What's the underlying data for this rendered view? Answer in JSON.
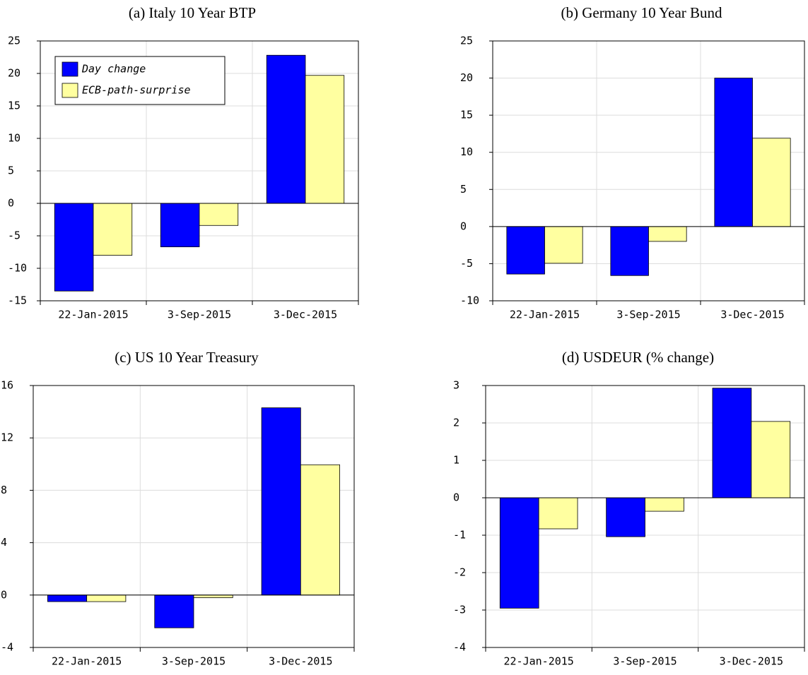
{
  "chart_data": [
    {
      "type": "bar",
      "title": "(a) Italy 10 Year BTP",
      "categories": [
        "22-Jan-2015",
        "3-Sep-2015",
        "3-Dec-2015"
      ],
      "series": [
        {
          "name": "Day change",
          "color": "#0000ff",
          "values": [
            -13.5,
            -6.7,
            22.8
          ]
        },
        {
          "name": "ECB-path-surprise",
          "color": "#ffffa0",
          "values": [
            -8.0,
            -3.4,
            19.7
          ]
        }
      ],
      "ylim": [
        -15,
        25
      ],
      "yticks": [
        -15,
        -10,
        -5,
        0,
        5,
        10,
        15,
        20,
        25
      ],
      "grid": true,
      "legend": "upper left"
    },
    {
      "type": "bar",
      "title": "(b) Germany 10 Year Bund",
      "categories": [
        "22-Jan-2015",
        "3-Sep-2015",
        "3-Dec-2015"
      ],
      "series": [
        {
          "color": "#0000ff",
          "values": [
            -6.4,
            -6.6,
            20.0
          ]
        },
        {
          "color": "#ffffa0",
          "values": [
            -4.95,
            -2.0,
            11.9
          ]
        }
      ],
      "ylim": [
        -10,
        25
      ],
      "yticks": [
        -10,
        -5,
        0,
        5,
        10,
        15,
        20,
        25
      ],
      "grid": true
    },
    {
      "type": "bar",
      "title": "(c) US 10 Year Treasury",
      "categories": [
        "22-Jan-2015",
        "3-Sep-2015",
        "3-Dec-2015"
      ],
      "series": [
        {
          "color": "#0000ff",
          "values": [
            -0.5,
            -2.5,
            14.3
          ]
        },
        {
          "color": "#ffffa0",
          "values": [
            -0.5,
            -0.2,
            9.95
          ]
        }
      ],
      "ylim": [
        -4,
        16
      ],
      "yticks": [
        -4,
        0,
        4,
        8,
        12,
        16
      ],
      "grid": true
    },
    {
      "type": "bar",
      "title": "(d) USDEUR (% change)",
      "categories": [
        "22-Jan-2015",
        "3-Sep-2015",
        "3-Dec-2015"
      ],
      "series": [
        {
          "color": "#0000ff",
          "values": [
            -2.95,
            -1.04,
            2.93
          ]
        },
        {
          "color": "#ffffa0",
          "values": [
            -0.83,
            -0.36,
            2.04
          ]
        }
      ],
      "ylim": [
        -4,
        3
      ],
      "yticks": [
        -4,
        -3,
        -2,
        -1,
        0,
        1,
        2,
        3
      ],
      "grid": true
    }
  ]
}
